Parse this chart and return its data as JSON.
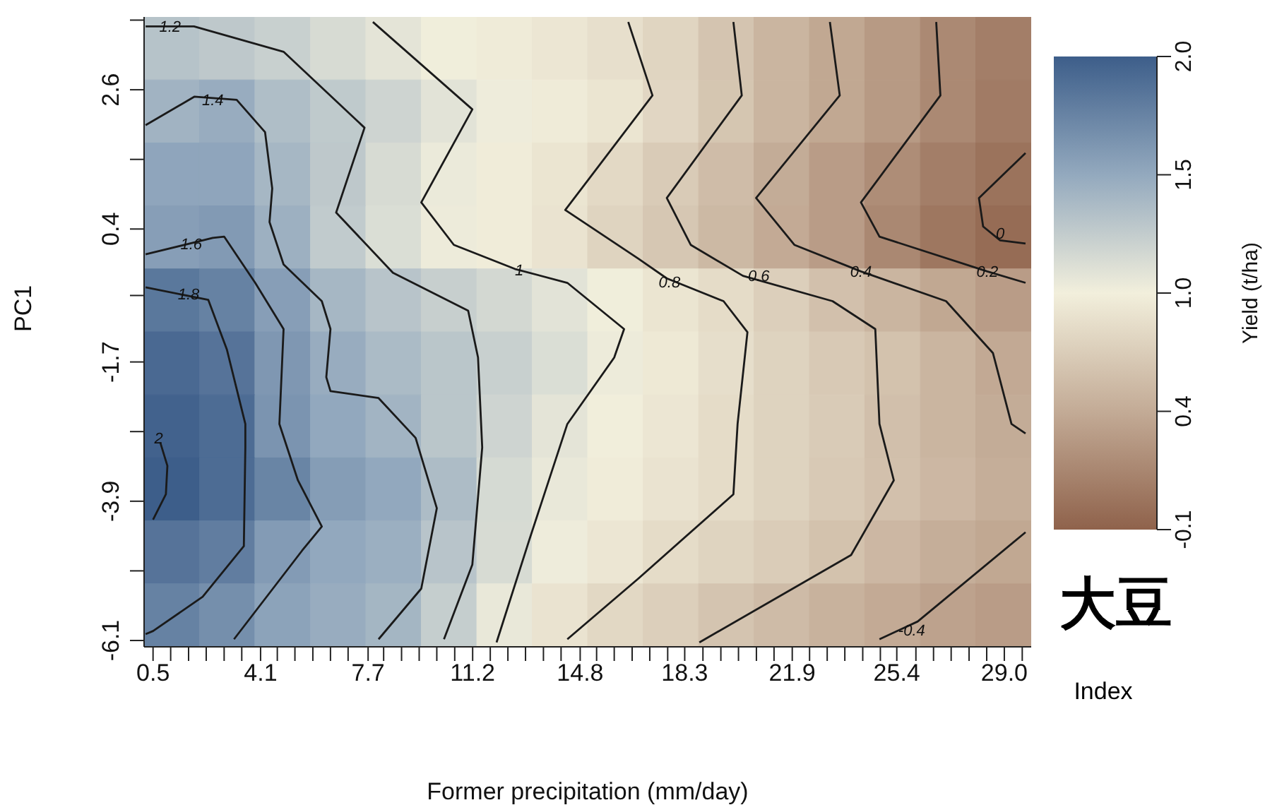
{
  "chart_data": {
    "type": "heatmap",
    "xlabel": "Former precipitation (mm/day)",
    "ylabel": "PC1",
    "clabel": "Yield (t/ha)",
    "x": [
      1.13,
      2.98,
      4.84,
      6.7,
      8.55,
      10.41,
      12.27,
      14.12,
      15.98,
      17.84,
      19.69,
      21.55,
      23.4,
      25.26,
      27.12,
      28.97
    ],
    "y": [
      3.25,
      2.26,
      1.26,
      0.27,
      -0.73,
      -1.72,
      -2.72,
      -3.71,
      -4.71,
      -5.7
    ],
    "cells": [
      [
        1.28,
        1.24,
        1.18,
        1.1,
        1.03,
        0.96,
        0.92,
        0.88,
        0.83,
        0.75,
        0.62,
        0.5,
        0.4,
        0.3,
        0.18,
        0.1
      ],
      [
        1.4,
        1.45,
        1.32,
        1.23,
        1.15,
        1.04,
        0.97,
        0.92,
        0.87,
        0.76,
        0.63,
        0.5,
        0.4,
        0.3,
        0.18,
        0.08
      ],
      [
        1.5,
        1.5,
        1.37,
        1.24,
        1.1,
        0.99,
        0.93,
        0.87,
        0.78,
        0.67,
        0.56,
        0.43,
        0.32,
        0.21,
        0.1,
        0.02
      ],
      [
        1.55,
        1.58,
        1.42,
        1.22,
        1.08,
        0.98,
        0.93,
        0.86,
        0.74,
        0.64,
        0.53,
        0.42,
        0.32,
        0.17,
        0.05,
        -0.03
      ],
      [
        1.82,
        1.75,
        1.55,
        1.37,
        1.27,
        1.19,
        1.12,
        1.04,
        0.96,
        0.87,
        0.8,
        0.7,
        0.59,
        0.5,
        0.4,
        0.32
      ],
      [
        1.92,
        1.85,
        1.6,
        1.45,
        1.34,
        1.26,
        1.18,
        1.08,
        0.98,
        0.9,
        0.82,
        0.73,
        0.66,
        0.6,
        0.5,
        0.41
      ],
      [
        1.97,
        1.9,
        1.62,
        1.48,
        1.39,
        1.26,
        1.15,
        1.03,
        0.94,
        0.88,
        0.8,
        0.73,
        0.67,
        0.58,
        0.5,
        0.43
      ],
      [
        2.0,
        1.9,
        1.73,
        1.56,
        1.48,
        1.33,
        1.11,
        1.0,
        0.93,
        0.86,
        0.8,
        0.73,
        0.66,
        0.59,
        0.52,
        0.45
      ],
      [
        1.85,
        1.78,
        1.57,
        1.48,
        1.43,
        1.27,
        1.1,
        0.97,
        0.88,
        0.8,
        0.74,
        0.68,
        0.6,
        0.52,
        0.45,
        0.4
      ],
      [
        1.75,
        1.66,
        1.52,
        1.45,
        1.38,
        1.2,
        1.0,
        0.86,
        0.77,
        0.7,
        0.62,
        0.55,
        0.48,
        0.42,
        0.36,
        0.32
      ]
    ],
    "clim": [
      -0.1,
      2.0
    ],
    "cticks": [
      -0.1,
      {
        "value": 0.425,
        "label": "0.4"
      },
      {
        "value": 0.95,
        "label": "1.0"
      },
      {
        "value": 1.475,
        "label": "1.5"
      },
      {
        "value": 2.0,
        "label": "2.0"
      }
    ],
    "colors": [
      "#8f624b",
      "#c3ab96",
      "#f2efdc",
      "#93a9be",
      "#3d5e8a"
    ],
    "xlim": [
      0.2,
      29.9
    ],
    "ylim": [
      -6.2,
      3.75
    ],
    "xticks": [
      0.5,
      {
        "value": 1.09,
        "label": null
      },
      {
        "value": 1.69,
        "label": null
      },
      {
        "value": 2.28,
        "label": null
      },
      {
        "value": 2.88,
        "label": null
      },
      {
        "value": 3.47,
        "label": null
      },
      4.1,
      {
        "value": 4.66,
        "label": null
      },
      {
        "value": 5.25,
        "label": null
      },
      {
        "value": 5.85,
        "label": null
      },
      {
        "value": 6.44,
        "label": null
      },
      {
        "value": 7.03,
        "label": null
      },
      7.7,
      {
        "value": 8.22,
        "label": null
      },
      {
        "value": 8.82,
        "label": null
      },
      {
        "value": 9.41,
        "label": null
      },
      {
        "value": 10.0,
        "label": null
      },
      {
        "value": 10.6,
        "label": null
      },
      11.2,
      {
        "value": 11.79,
        "label": null
      },
      {
        "value": 12.38,
        "label": null
      },
      {
        "value": 12.97,
        "label": null
      },
      {
        "value": 13.57,
        "label": null
      },
      {
        "value": 14.16,
        "label": null
      },
      14.8,
      {
        "value": 15.35,
        "label": null
      },
      {
        "value": 15.94,
        "label": null
      },
      {
        "value": 16.54,
        "label": null
      },
      {
        "value": 17.13,
        "label": null
      },
      {
        "value": 17.73,
        "label": null
      },
      18.3,
      {
        "value": 18.91,
        "label": null
      },
      {
        "value": 19.51,
        "label": null
      },
      {
        "value": 20.1,
        "label": null
      },
      {
        "value": 20.7,
        "label": null
      },
      {
        "value": 21.29,
        "label": null
      },
      21.9,
      {
        "value": 22.48,
        "label": null
      },
      {
        "value": 23.07,
        "label": null
      },
      {
        "value": 23.66,
        "label": null
      },
      {
        "value": 24.26,
        "label": null
      },
      {
        "value": 24.85,
        "label": null
      },
      25.4,
      {
        "value": 26.04,
        "label": null
      },
      {
        "value": 26.63,
        "label": null
      },
      {
        "value": 27.22,
        "label": null
      },
      {
        "value": 27.82,
        "label": null
      },
      {
        "value": 28.41,
        "label": null
      },
      {
        "value": 29,
        "label": "29.0"
      },
      {
        "value": 29.6,
        "label": null
      }
    ],
    "yticks": [
      {
        "value": 3.7,
        "label": null
      },
      2.6,
      {
        "value": 1.5,
        "label": null
      },
      0.4,
      {
        "value": -0.65,
        "label": null
      },
      -1.7,
      {
        "value": -2.8,
        "label": null
      },
      -3.9,
      {
        "value": -5.0,
        "label": null
      },
      -6.1
    ],
    "series": [
      {
        "type": "line",
        "color": "#1a1a1a",
        "x": [
          0.25,
          1.87,
          4.87,
          7.58,
          6.63,
          8.53,
          11.05,
          11.38,
          11.52,
          11.19,
          10.24
        ],
        "values": [
          3.6,
          3.6,
          3.2,
          2.0,
          0.66,
          -0.29,
          -0.89,
          -1.63,
          -3.05,
          -4.9,
          -6.08
        ]
      },
      {
        "type": "line",
        "color": "#1a1a1a",
        "x": [
          0.25,
          1.88,
          3.3,
          4.25,
          4.49,
          4.4,
          4.87,
          6.15,
          6.44,
          6.3,
          6.44,
          8.05,
          9.29,
          10.0,
          9.48,
          8.05
        ],
        "values": [
          2.04,
          2.49,
          2.44,
          1.93,
          1.04,
          0.51,
          -0.16,
          -0.74,
          -1.18,
          -1.94,
          -2.16,
          -2.27,
          -2.9,
          -4.01,
          -5.28,
          -6.08
        ]
      },
      {
        "type": "line",
        "color": "#1a1a1a",
        "x": [
          0.25,
          2.5,
          2.88,
          3.92,
          4.87,
          4.73,
          5.35,
          6.15,
          5.49,
          3.21
        ],
        "values": [
          0.0,
          0.26,
          0.28,
          -0.45,
          -1.18,
          -2.68,
          -3.57,
          -4.3,
          -4.68,
          -6.08
        ]
      },
      {
        "type": "line",
        "color": "#1a1a1a",
        "x": [
          0.25,
          2.35,
          2.97,
          3.59,
          3.59,
          3.54,
          2.16,
          0.5,
          0.25
        ],
        "values": [
          -0.52,
          -0.72,
          -1.5,
          -2.68,
          -3.05,
          -4.61,
          -5.41,
          -5.95,
          -6.0
        ]
      },
      {
        "type": "line",
        "color": "#1a1a1a",
        "x": [
          0.74,
          0.98,
          0.93,
          0.5
        ],
        "values": [
          -2.97,
          -3.34,
          -3.79,
          -4.19
        ]
      },
      {
        "type": "line",
        "color": "#1a1a1a",
        "x": [
          7.86,
          11.19,
          9.48,
          10.57,
          12.61,
          14.37,
          16.27,
          15.94,
          14.37,
          13.09,
          12.0
        ],
        "values": [
          3.67,
          2.29,
          0.82,
          0.15,
          -0.23,
          -0.45,
          -1.18,
          -1.63,
          -2.68,
          -4.52,
          -6.13
        ]
      },
      {
        "type": "line",
        "color": "#1a1a1a",
        "x": [
          16.41,
          17.22,
          14.3,
          16.75,
          17.7,
          19.6,
          20.4,
          20.07,
          19.93,
          16.75,
          14.37
        ],
        "values": [
          3.67,
          2.51,
          0.7,
          -0.07,
          -0.38,
          -0.74,
          -1.23,
          -2.68,
          -3.79,
          -5.12,
          -6.08
        ]
      },
      {
        "type": "line",
        "color": "#1a1a1a",
        "x": [
          19.93,
          20.21,
          17.7,
          18.5,
          20.25,
          23.25,
          24.68,
          24.82,
          25.3,
          23.87,
          18.79
        ],
        "values": [
          3.67,
          2.51,
          0.89,
          0.15,
          -0.34,
          -0.74,
          -1.18,
          -2.68,
          -3.57,
          -4.75,
          -6.13
        ]
      },
      {
        "type": "line",
        "color": "#1a1a1a",
        "x": [
          23.16,
          23.49,
          20.69,
          21.97,
          24.2,
          27.05,
          28.62,
          29.24,
          29.71
        ],
        "values": [
          3.67,
          2.51,
          0.89,
          0.15,
          -0.27,
          -0.74,
          -1.56,
          -2.68,
          -2.83
        ]
      },
      {
        "type": "line",
        "color": "#1a1a1a",
        "x": [
          26.72,
          26.86,
          24.2,
          24.82,
          28.43,
          29.71
        ],
        "values": [
          3.67,
          2.51,
          0.82,
          0.28,
          -0.27,
          -0.45
        ]
      },
      {
        "type": "line",
        "color": "#1a1a1a",
        "x": [
          29.71,
          28.15,
          28.29,
          28.86,
          29.71
        ],
        "values": [
          1.6,
          0.89,
          0.44,
          0.22,
          0.17
        ]
      },
      {
        "type": "line",
        "color": "#1a1a1a",
        "x": [
          29.71,
          26.1,
          24.82
        ],
        "values": [
          -4.39,
          -5.8,
          -6.08
        ]
      }
    ],
    "annotations": [
      "大豆",
      "Index",
      {
        "text": "1.2",
        "x": 1.07,
        "y": 3.6
      },
      {
        "text": "1.4",
        "x": 2.5,
        "y": 2.44
      },
      {
        "text": "1.6",
        "x": 1.78,
        "y": 0.17
      },
      {
        "text": "1.8",
        "x": 1.69,
        "y": -0.63
      },
      {
        "text": "2",
        "x": 0.69,
        "y": -2.9
      },
      {
        "text": "1",
        "x": 12.76,
        "y": -0.25
      },
      {
        "text": "0.8",
        "x": 17.79,
        "y": -0.43
      },
      {
        "text": "0.6",
        "x": 20.78,
        "y": -0.34
      },
      {
        "text": "0.4",
        "x": 24.2,
        "y": -0.27
      },
      {
        "text": "0.2",
        "x": 28.43,
        "y": -0.27
      },
      {
        "text": "0",
        "x": 28.86,
        "y": 0.33
      },
      {
        "text": "-0.4",
        "x": 25.9,
        "y": -5.93
      }
    ]
  }
}
